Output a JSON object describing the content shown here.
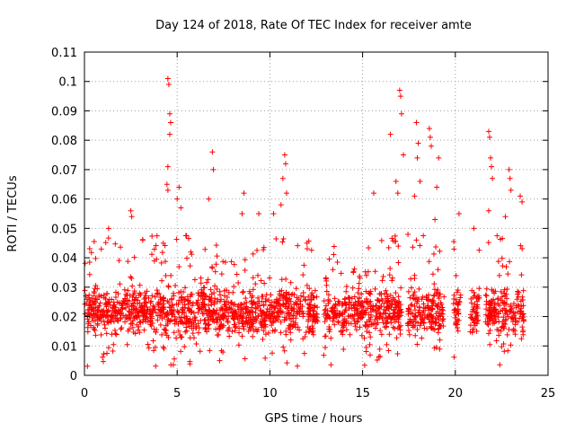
{
  "chart_data": {
    "type": "scatter",
    "title": "Day 124 of 2018, Rate Of TEC Index for receiver amte",
    "xlabel": "GPS time / hours",
    "ylabel": "ROTI / TECUs",
    "xlim": [
      0,
      25
    ],
    "ylim": [
      0,
      0.11
    ],
    "xticks": [
      0,
      5,
      10,
      15,
      20,
      25
    ],
    "yticks": [
      0,
      0.01,
      0.02,
      0.03,
      0.04,
      0.05,
      0.06,
      0.07,
      0.08,
      0.09,
      0.1,
      0.11
    ],
    "grid": true,
    "marker": "+",
    "color": "#ff0000",
    "series": [
      {
        "data_ranges": [
          [
            0.0,
            12.6
          ],
          [
            12.9,
            17.1
          ],
          [
            17.4,
            19.4
          ],
          [
            19.9,
            20.3
          ],
          [
            20.8,
            21.3
          ],
          [
            21.6,
            23.7
          ]
        ],
        "typical_range": [
          0.008,
          0.032
        ],
        "peaks": [
          {
            "x": 4.5,
            "y": 0.101
          },
          {
            "x": 4.55,
            "y": 0.099
          },
          {
            "x": 4.6,
            "y": 0.089
          },
          {
            "x": 4.65,
            "y": 0.086
          },
          {
            "x": 4.6,
            "y": 0.082
          },
          {
            "x": 4.5,
            "y": 0.071
          },
          {
            "x": 4.45,
            "y": 0.065
          },
          {
            "x": 4.5,
            "y": 0.063
          },
          {
            "x": 6.9,
            "y": 0.076
          },
          {
            "x": 6.95,
            "y": 0.07
          },
          {
            "x": 6.7,
            "y": 0.06
          },
          {
            "x": 5.1,
            "y": 0.064
          },
          {
            "x": 5.0,
            "y": 0.06
          },
          {
            "x": 5.2,
            "y": 0.057
          },
          {
            "x": 8.6,
            "y": 0.062
          },
          {
            "x": 8.5,
            "y": 0.055
          },
          {
            "x": 10.8,
            "y": 0.075
          },
          {
            "x": 10.85,
            "y": 0.072
          },
          {
            "x": 10.7,
            "y": 0.067
          },
          {
            "x": 10.9,
            "y": 0.062
          },
          {
            "x": 10.6,
            "y": 0.058
          },
          {
            "x": 10.2,
            "y": 0.055
          },
          {
            "x": 2.5,
            "y": 0.056
          },
          {
            "x": 2.55,
            "y": 0.054
          },
          {
            "x": 1.3,
            "y": 0.05
          },
          {
            "x": 9.4,
            "y": 0.055
          },
          {
            "x": 12.0,
            "y": 0.045
          },
          {
            "x": 15.6,
            "y": 0.062
          },
          {
            "x": 16.5,
            "y": 0.082
          },
          {
            "x": 17.0,
            "y": 0.097
          },
          {
            "x": 17.05,
            "y": 0.095
          },
          {
            "x": 17.1,
            "y": 0.089
          },
          {
            "x": 17.2,
            "y": 0.075
          },
          {
            "x": 16.8,
            "y": 0.066
          },
          {
            "x": 16.9,
            "y": 0.062
          },
          {
            "x": 17.9,
            "y": 0.086
          },
          {
            "x": 18.0,
            "y": 0.079
          },
          {
            "x": 17.95,
            "y": 0.074
          },
          {
            "x": 18.1,
            "y": 0.066
          },
          {
            "x": 17.8,
            "y": 0.061
          },
          {
            "x": 18.6,
            "y": 0.084
          },
          {
            "x": 18.65,
            "y": 0.081
          },
          {
            "x": 18.7,
            "y": 0.078
          },
          {
            "x": 19.1,
            "y": 0.074
          },
          {
            "x": 19.0,
            "y": 0.064
          },
          {
            "x": 18.9,
            "y": 0.053
          },
          {
            "x": 20.2,
            "y": 0.055
          },
          {
            "x": 21.0,
            "y": 0.05
          },
          {
            "x": 21.8,
            "y": 0.083
          },
          {
            "x": 21.85,
            "y": 0.081
          },
          {
            "x": 21.9,
            "y": 0.074
          },
          {
            "x": 21.95,
            "y": 0.071
          },
          {
            "x": 22.0,
            "y": 0.067
          },
          {
            "x": 21.8,
            "y": 0.056
          },
          {
            "x": 22.9,
            "y": 0.07
          },
          {
            "x": 22.95,
            "y": 0.067
          },
          {
            "x": 23.0,
            "y": 0.063
          },
          {
            "x": 23.5,
            "y": 0.061
          },
          {
            "x": 23.6,
            "y": 0.059
          },
          {
            "x": 22.7,
            "y": 0.054
          }
        ]
      }
    ]
  }
}
